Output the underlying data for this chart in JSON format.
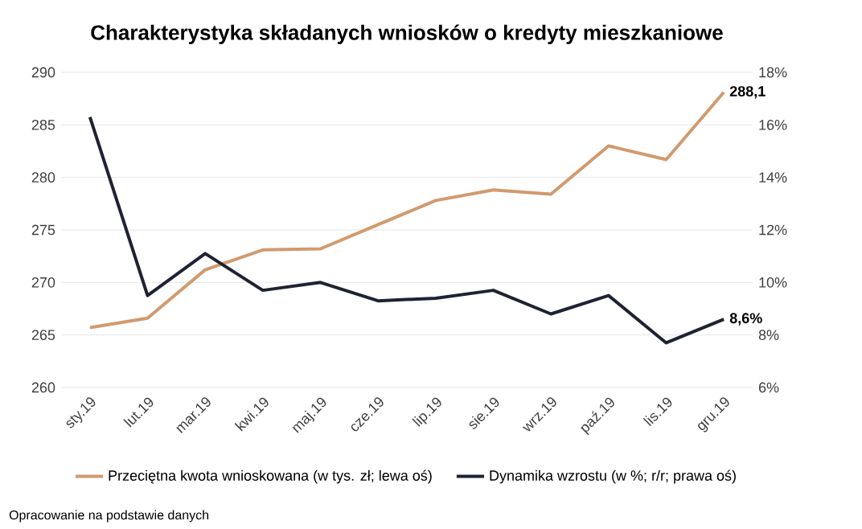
{
  "chart_data": {
    "type": "line",
    "title": "Charakterystyka składanych wniosków o kredyty mieszkaniowe",
    "categories": [
      "sty.19",
      "lut.19",
      "mar.19",
      "kwi.19",
      "maj.19",
      "cze.19",
      "lip.19",
      "sie.19",
      "wrz.19",
      "paź.19",
      "lis.19",
      "gru.19"
    ],
    "series": [
      {
        "name": "Przeciętna kwota wnioskowana (w tys. zł; lewa oś)",
        "color": "#d19a6e",
        "values": [
          265.7,
          266.6,
          271.2,
          273.1,
          273.2,
          275.5,
          277.8,
          278.8,
          278.4,
          283.0,
          281.7,
          288.1
        ],
        "value_labels": [
          null,
          null,
          null,
          null,
          null,
          null,
          null,
          null,
          null,
          null,
          null,
          "288,1"
        ]
      },
      {
        "name": "Dynamika wzrostu (w %; r/r; prawa oś)",
        "color": "#1e2233",
        "axis": "y2",
        "values": [
          16.3,
          9.5,
          11.1,
          9.7,
          10.0,
          9.3,
          9.4,
          9.7,
          8.8,
          9.5,
          7.7,
          8.6
        ],
        "value_labels": [
          null,
          null,
          null,
          null,
          null,
          null,
          null,
          null,
          null,
          null,
          null,
          "8,6%"
        ]
      }
    ],
    "ylim": [
      260,
      290
    ],
    "yticks": [
      260,
      265,
      270,
      275,
      280,
      285,
      290
    ],
    "y2lim": [
      6,
      18
    ],
    "y2ticks": [
      {
        "value": 6,
        "label": "6%"
      },
      {
        "value": 8,
        "label": "8%"
      },
      {
        "value": 10,
        "label": "10%"
      },
      {
        "value": 12,
        "label": "12%"
      },
      {
        "value": 14,
        "label": "14%"
      },
      {
        "value": 16,
        "label": "16%"
      },
      {
        "value": 18,
        "label": "18%"
      }
    ],
    "grid": "y",
    "legend": "bottom",
    "marker": "none",
    "line_style": "solid",
    "annotations": [
      "Opracowanie na podstawie danych"
    ]
  }
}
